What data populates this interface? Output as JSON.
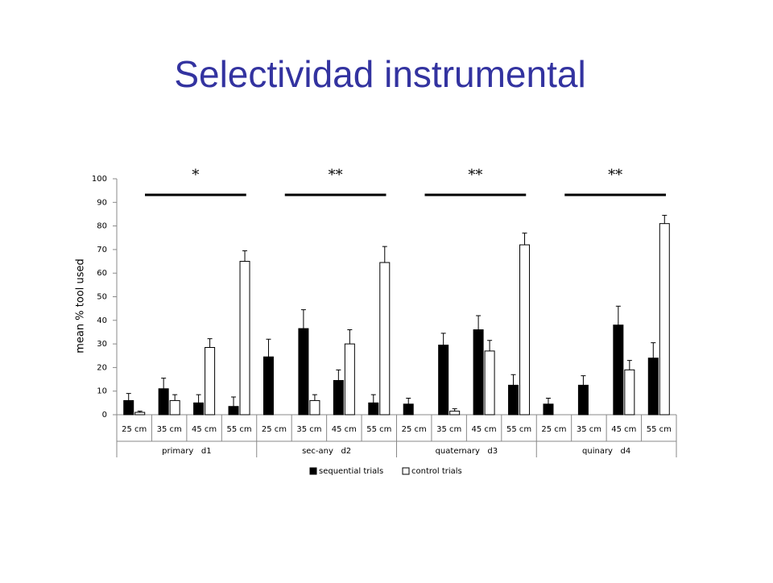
{
  "title": "Selectividad instrumental",
  "chart_data": {
    "type": "bar",
    "y_label": "mean % tool used",
    "groups": [
      "primary   d1",
      "sec-any   d2",
      "quaternary   d3",
      "quinary   d4"
    ],
    "categories": [
      "25 cm",
      "35 cm",
      "45 cm",
      "55 cm",
      "25 cm",
      "35 cm",
      "45 cm",
      "55 cm",
      "25 cm",
      "35 cm",
      "45 cm",
      "55 cm",
      "25 cm",
      "35 cm",
      "45 cm",
      "55 cm"
    ],
    "series": [
      {
        "name": "sequential trials",
        "color": "#000000",
        "values": [
          6,
          11,
          5,
          3.5,
          24.5,
          36.5,
          14.5,
          5,
          4.5,
          29.5,
          36,
          12.5,
          4.5,
          12.5,
          38,
          24
        ],
        "errors": [
          3,
          4.5,
          3.5,
          4,
          7.5,
          8,
          4.5,
          3.5,
          2.5,
          5,
          6,
          4.5,
          2.5,
          4,
          8,
          6.5
        ]
      },
      {
        "name": "control trials",
        "color": "#ffffff",
        "values": [
          1,
          6,
          28.5,
          65,
          0,
          6,
          30,
          64.5,
          0,
          1.5,
          27,
          72,
          0,
          0,
          19,
          81
        ],
        "errors": [
          0.5,
          2.5,
          3.7,
          4.5,
          null,
          2.5,
          6,
          6.8,
          null,
          1,
          4.5,
          5,
          null,
          null,
          4,
          3.5
        ]
      }
    ],
    "significance": [
      "*",
      "**",
      "**",
      "**"
    ],
    "ylim": [
      0,
      100
    ],
    "yticks": [
      0,
      10,
      20,
      30,
      40,
      50,
      60,
      70,
      80,
      90,
      100
    ],
    "grid": false
  }
}
